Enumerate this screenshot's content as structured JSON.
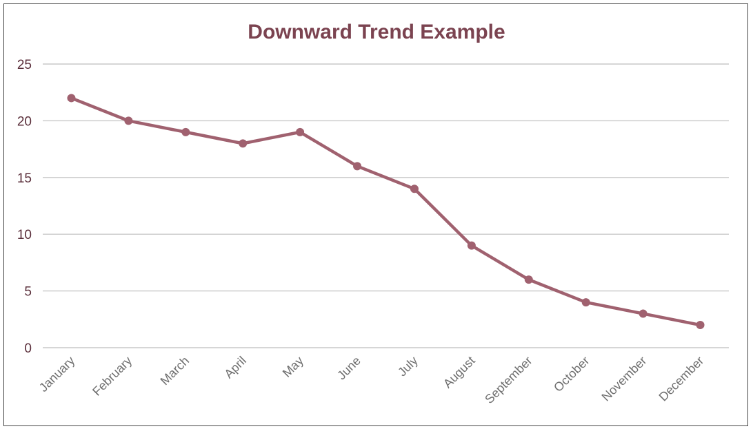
{
  "chart_data": {
    "type": "line",
    "title": "Downward Trend Example",
    "xlabel": "",
    "ylabel": "",
    "categories": [
      "January",
      "February",
      "March",
      "April",
      "May",
      "June",
      "July",
      "August",
      "September",
      "October",
      "November",
      "December"
    ],
    "series": [
      {
        "values": [
          22,
          20,
          19,
          18,
          19,
          16,
          14,
          9,
          6,
          4,
          3,
          2
        ]
      }
    ],
    "ylim": [
      0,
      25
    ],
    "yticks": [
      "0",
      "5",
      "10",
      "15",
      "20",
      "25"
    ],
    "grid": true,
    "legend": "none",
    "color": "#a0616f"
  }
}
